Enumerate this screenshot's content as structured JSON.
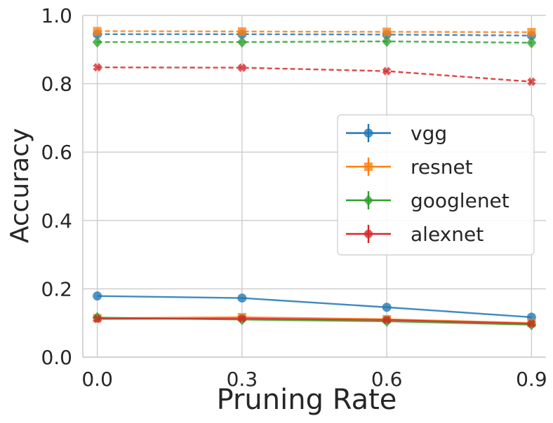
{
  "chart_data": {
    "type": "line",
    "title": "",
    "xlabel": "Pruning Rate",
    "ylabel": "Accuracy",
    "x": [
      0.0,
      0.3,
      0.6,
      0.9
    ],
    "x_tick_labels": [
      "0.0",
      "0.3",
      "0.6",
      "0.9"
    ],
    "xlim": [
      -0.03,
      0.93
    ],
    "ylim": [
      0.0,
      1.0
    ],
    "y_ticks": [
      0.0,
      0.2,
      0.4,
      0.6,
      0.8,
      1.0
    ],
    "y_tick_labels": [
      "0.0",
      "0.2",
      "0.4",
      "0.6",
      "0.8",
      "1.0"
    ],
    "grid": true,
    "legend_position": "center-right",
    "series": [
      {
        "name": "vgg",
        "color": "#1f77b4",
        "marker": "circle",
        "linestyle": "solid",
        "values": [
          0.179,
          0.173,
          0.146,
          0.117
        ]
      },
      {
        "name": "vgg",
        "color": "#1f77b4",
        "marker": "circle",
        "linestyle": "dashed",
        "values": [
          0.945,
          0.945,
          0.944,
          0.941
        ]
      },
      {
        "name": "resnet",
        "color": "#ff7f0e",
        "marker": "square",
        "linestyle": "solid",
        "values": [
          0.114,
          0.117,
          0.111,
          0.1
        ]
      },
      {
        "name": "resnet",
        "color": "#ff7f0e",
        "marker": "square",
        "linestyle": "dashed",
        "values": [
          0.954,
          0.953,
          0.952,
          0.951
        ]
      },
      {
        "name": "googlenet",
        "color": "#2ca02c",
        "marker": "diamond",
        "linestyle": "solid",
        "values": [
          0.116,
          0.11,
          0.105,
          0.095
        ]
      },
      {
        "name": "googlenet",
        "color": "#2ca02c",
        "marker": "diamond",
        "linestyle": "dashed",
        "values": [
          0.922,
          0.922,
          0.924,
          0.92
        ]
      },
      {
        "name": "alexnet",
        "color": "#d62728",
        "marker": "x",
        "linestyle": "solid",
        "values": [
          0.112,
          0.113,
          0.109,
          0.098
        ]
      },
      {
        "name": "alexnet",
        "color": "#d62728",
        "marker": "x",
        "linestyle": "dashed",
        "values": [
          0.848,
          0.847,
          0.837,
          0.806
        ]
      }
    ],
    "legend": [
      {
        "label": "vgg",
        "color": "#1f77b4",
        "marker": "circle"
      },
      {
        "label": "resnet",
        "color": "#ff7f0e",
        "marker": "square"
      },
      {
        "label": "googlenet",
        "color": "#2ca02c",
        "marker": "diamond"
      },
      {
        "label": "alexnet",
        "color": "#d62728",
        "marker": "x"
      }
    ]
  }
}
